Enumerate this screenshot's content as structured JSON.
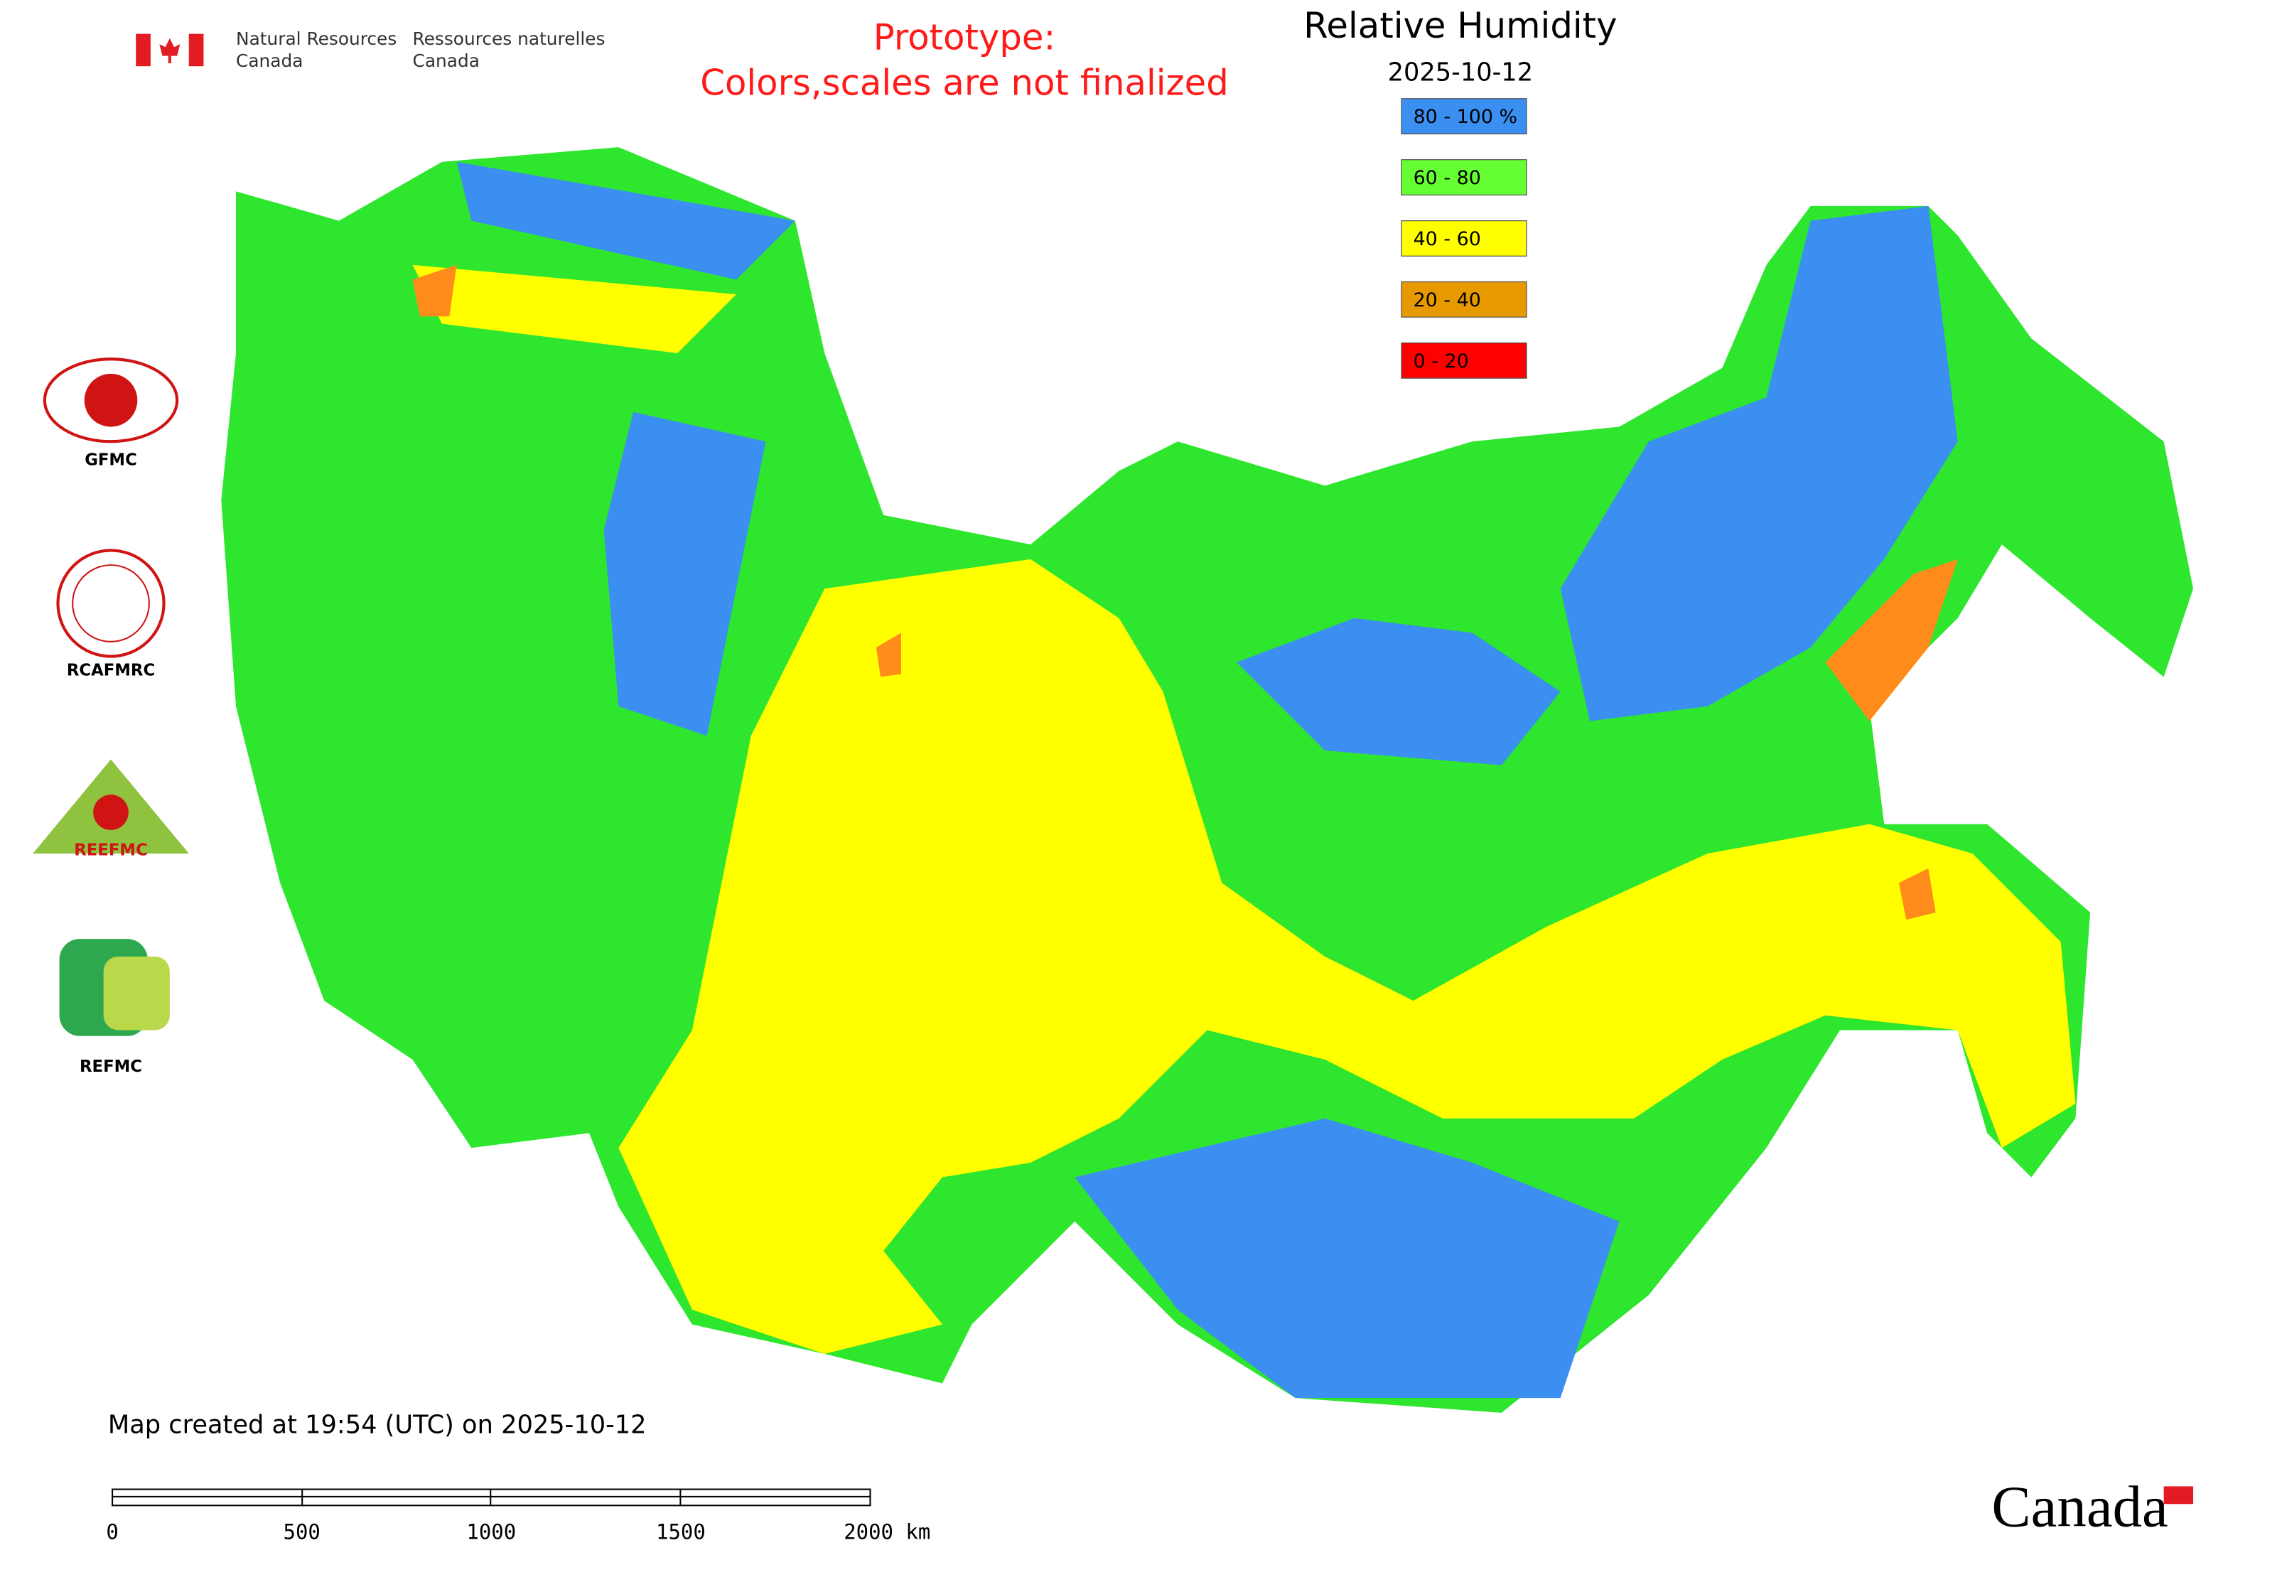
{
  "header": {
    "org_en": [
      "Natural Resources",
      "Canada"
    ],
    "org_fr": [
      "Ressources naturelles",
      "Canada"
    ],
    "notice": [
      "Prototype:",
      "Colors,scales are not finalized"
    ]
  },
  "legend": {
    "title": "Relative Humidity",
    "date": "2025-10-12",
    "entries": [
      {
        "label": "80 - 100 %",
        "color": "#3b8ff0"
      },
      {
        "label": "60 - 80",
        "color": "#66ff33"
      },
      {
        "label": "40 - 60",
        "color": "#ffff00"
      },
      {
        "label": "20 - 40",
        "color": "#e69a00"
      },
      {
        "label": "0 - 20",
        "color": "#ff0000"
      }
    ]
  },
  "logos": [
    "GFMC",
    "RCAFMRC",
    "REEFMC",
    "REFMC"
  ],
  "footer": {
    "created": "Map created at 19:54 (UTC) on 2025-10-12",
    "scale_labels": [
      "0",
      "500",
      "1000",
      "1500",
      "2000 km"
    ],
    "wordmark": "Canada"
  }
}
